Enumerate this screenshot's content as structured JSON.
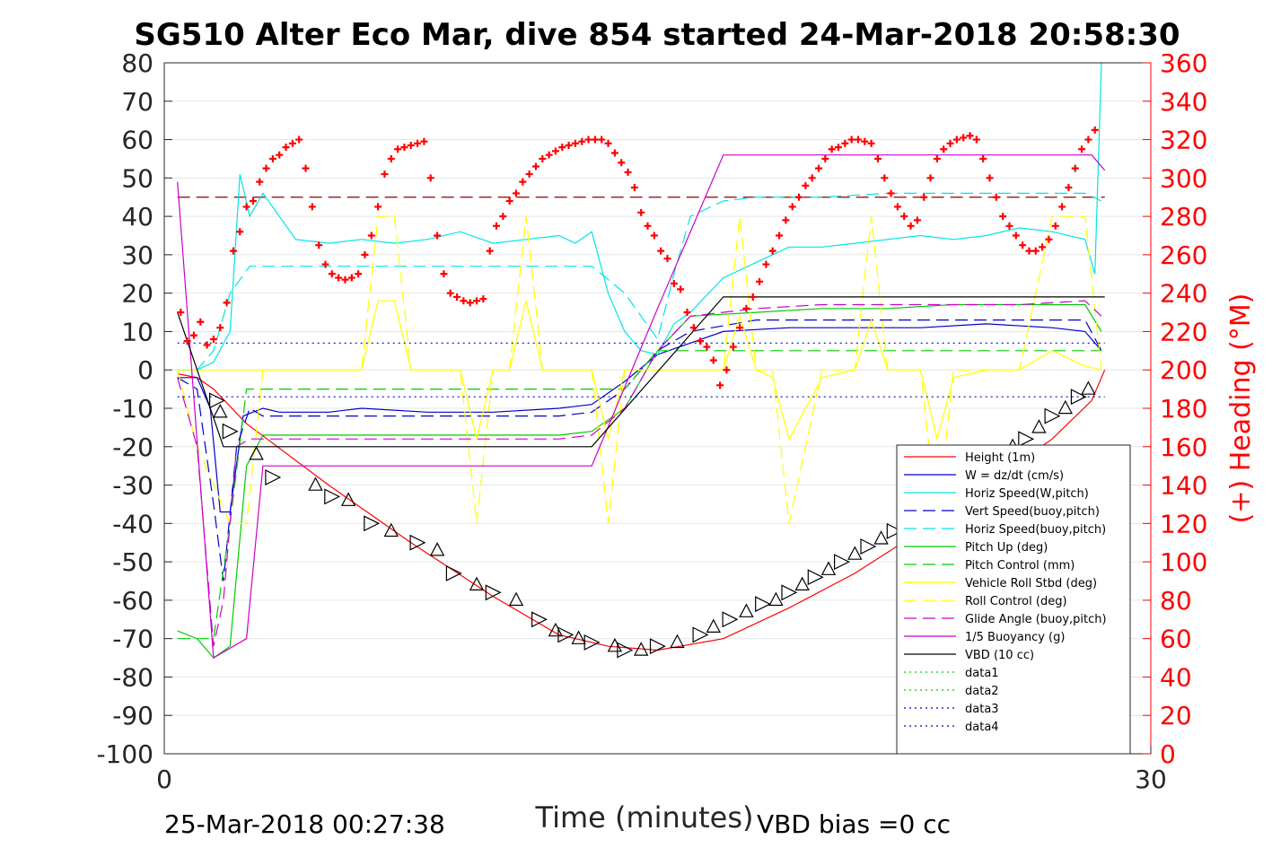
{
  "chart_data": {
    "type": "line",
    "title": "SG510 Alter Eco Mar, dive 854 started 24-Mar-2018 20:58:30",
    "xlabel": "Time (minutes)",
    "ylabel_right": "(+) Heading (°M)",
    "xlim": [
      0,
      30
    ],
    "ylim": [
      -100,
      80
    ],
    "ylim_right": [
      0,
      360
    ],
    "xticks": [
      "0",
      "30"
    ],
    "yticks": [
      "80",
      "70",
      "60",
      "50",
      "40",
      "30",
      "20",
      "10",
      "0",
      "-10",
      "-20",
      "-30",
      "-40",
      "-50",
      "-60",
      "-70",
      "-80",
      "-90",
      "-100"
    ],
    "yticks_right": [
      "360",
      "340",
      "320",
      "300",
      "280",
      "260",
      "240",
      "220",
      "200",
      "180",
      "160",
      "140",
      "120",
      "100",
      "80",
      "60",
      "40",
      "20",
      "0"
    ],
    "footer_left": "25-Mar-2018 00:27:38",
    "footer_right": "VBD bias =0 cc",
    "grid": true,
    "legend_position": "bottom-right",
    "series": [
      {
        "name": "Height (1m)",
        "color": "#ff0000",
        "style": "solid",
        "x": [
          0.4,
          1,
          1.5,
          2.5,
          5,
          7.5,
          10,
          12,
          13.5,
          15,
          17,
          19,
          21,
          23,
          25,
          27,
          28.2,
          28.6
        ],
        "y": [
          -1,
          -2,
          -5,
          -14,
          -30,
          -45,
          -59,
          -69,
          -72,
          -73,
          -70,
          -62,
          -53,
          -42,
          -30,
          -18,
          -8,
          0
        ]
      },
      {
        "name": "W = dz/dt (cm/s)",
        "color": "#0000cc",
        "style": "solid",
        "x": [
          0.4,
          1,
          1.4,
          1.7,
          2,
          2.4,
          3,
          3.5,
          5,
          6,
          8,
          10,
          12,
          13,
          14,
          15,
          16,
          17,
          19,
          21,
          23,
          25,
          27,
          28,
          28.5
        ],
        "y": [
          -2,
          -2,
          -10,
          -37,
          -37,
          -12,
          -10,
          -11,
          -11,
          -10,
          -11,
          -11,
          -10,
          -9,
          -3,
          4,
          7,
          10,
          11,
          11,
          11,
          12,
          11,
          10,
          5
        ]
      },
      {
        "name": "Horiz Speed(W,pitch)",
        "color": "#00e5e5",
        "style": "solid",
        "x": [
          0.4,
          1,
          1.5,
          2,
          2.3,
          2.6,
          3,
          4,
          5,
          6,
          7,
          8,
          9,
          10,
          11,
          12,
          12.5,
          13,
          13.5,
          14,
          14.5,
          15,
          15.5,
          16,
          17,
          18,
          19,
          20,
          21,
          22,
          23,
          24,
          25,
          26,
          27,
          28,
          28.3,
          28.5
        ],
        "y": [
          0,
          0,
          2,
          10,
          51,
          40,
          46,
          34,
          33,
          34,
          33,
          34,
          36,
          33,
          34,
          35,
          33,
          36,
          20,
          10,
          5,
          4,
          12,
          15,
          24,
          28,
          32,
          32,
          33,
          34,
          35,
          34,
          35,
          37,
          36,
          34,
          25,
          80
        ]
      },
      {
        "name": "Vert Speed(buoy,pitch)",
        "color": "#0000cc",
        "style": "dashed",
        "x": [
          0.4,
          1,
          1.5,
          1.8,
          2.2,
          2.6,
          3,
          5,
          8,
          10,
          12,
          13,
          14,
          15,
          16,
          18,
          20,
          24,
          26,
          28,
          28.5
        ],
        "y": [
          -2,
          -5,
          -35,
          -55,
          -20,
          -10,
          -12,
          -12,
          -12,
          -12,
          -12,
          -11,
          -5,
          5,
          10,
          13,
          13,
          13,
          13,
          13,
          5
        ]
      },
      {
        "name": "Horiz Speed(buoy,pitch)",
        "color": "#00e5e5",
        "style": "dashed",
        "x": [
          0.4,
          1,
          1.5,
          2,
          2.6,
          3,
          5,
          8,
          10,
          12,
          13,
          14,
          15,
          15.5,
          16,
          17,
          18,
          20,
          22,
          24,
          26,
          28,
          28.5
        ],
        "y": [
          0,
          0,
          5,
          20,
          27,
          27,
          27,
          27,
          27,
          27,
          27,
          20,
          8,
          25,
          40,
          44,
          45,
          45,
          46,
          46,
          46,
          46,
          44
        ]
      },
      {
        "name": "Pitch Up (deg)",
        "color": "#00cc00",
        "style": "solid",
        "x": [
          0.4,
          1,
          1.5,
          2,
          2.5,
          3,
          4,
          6,
          8,
          10,
          12,
          13,
          14,
          15,
          16,
          18,
          20,
          22,
          24,
          26,
          28,
          28.5
        ],
        "y": [
          -68,
          -70,
          -75,
          -72,
          -25,
          -17,
          -17,
          -17,
          -17,
          -17,
          -17,
          -16,
          -10,
          5,
          14,
          15,
          16,
          16,
          17,
          17,
          17,
          10
        ]
      },
      {
        "name": "Pitch Control (mm)",
        "color": "#00cc00",
        "style": "dashed",
        "x": [
          0.4,
          1.5,
          2,
          2.5,
          13,
          14,
          15,
          28.5
        ],
        "y": [
          -70,
          -70,
          -40,
          -5,
          -5,
          -5,
          5,
          5
        ]
      },
      {
        "name": "Vehicle Roll Stbd (deg)",
        "color": "#ffff00",
        "style": "solid",
        "x": [
          0.4,
          2,
          3,
          4,
          5,
          6,
          6.5,
          7,
          7.5,
          8,
          9,
          9.5,
          10,
          10.5,
          11,
          11.5,
          12,
          13,
          13.5,
          14,
          15,
          16,
          17,
          17.5,
          18,
          18.5,
          19,
          20,
          21,
          21.5,
          22,
          23,
          23.5,
          24,
          25,
          26,
          27,
          28,
          28.5
        ],
        "y": [
          0,
          0,
          0,
          0,
          0,
          0,
          18,
          18,
          0,
          0,
          0,
          -18,
          0,
          0,
          18,
          0,
          0,
          0,
          -18,
          0,
          0,
          0,
          0,
          14,
          0,
          -2,
          -18,
          -2,
          0,
          13,
          0,
          0,
          -18,
          -2,
          0,
          0,
          5,
          1,
          0
        ]
      },
      {
        "name": "Roll Control (deg)",
        "color": "#ffff00",
        "style": "dashed",
        "x": [
          0.4,
          1,
          2,
          2.5,
          3,
          5,
          6,
          6.5,
          7,
          7.5,
          8,
          9,
          9.5,
          10,
          10.5,
          11,
          11.5,
          12,
          13,
          13.5,
          14,
          16,
          17,
          17.5,
          18,
          18.5,
          19,
          20,
          21,
          21.5,
          22,
          23,
          23.5,
          24,
          25,
          26,
          27,
          28,
          28.5
        ],
        "y": [
          0,
          -20,
          -40,
          -40,
          0,
          0,
          0,
          40,
          40,
          0,
          0,
          0,
          -40,
          0,
          0,
          40,
          0,
          0,
          0,
          -40,
          0,
          0,
          0,
          40,
          0,
          0,
          -40,
          0,
          0,
          40,
          0,
          0,
          -40,
          0,
          0,
          0,
          40,
          40,
          0
        ]
      },
      {
        "name": "Glide Angle (buoy,pitch)",
        "color": "#cc00cc",
        "style": "dashed",
        "x": [
          0.4,
          1,
          1.5,
          1.8,
          2.2,
          2.6,
          3,
          5,
          8,
          10,
          12,
          13,
          14,
          15,
          16,
          18,
          20,
          22,
          24,
          26,
          28,
          28.5
        ],
        "y": [
          -2,
          -20,
          -72,
          -60,
          -20,
          -18,
          -18,
          -18,
          -18,
          -18,
          -18,
          -17,
          -10,
          5,
          14,
          16,
          17,
          17,
          17,
          17,
          18,
          14
        ]
      },
      {
        "name": "1/5 Buoyancy (g)",
        "color": "#cc00cc",
        "style": "solid",
        "x": [
          0.4,
          1.5,
          2.5,
          3,
          4,
          13,
          15,
          17,
          28.2,
          28.6
        ],
        "y": [
          49,
          -75,
          -70,
          -25,
          -25,
          -25,
          16,
          56,
          56,
          52
        ]
      },
      {
        "name": "VBD (10 cc)",
        "color": "#000000",
        "style": "solid",
        "x": [
          0.4,
          1.8,
          13,
          17,
          28.6
        ],
        "y": [
          15,
          -20,
          -20,
          19,
          19
        ]
      },
      {
        "name": "data1",
        "color": "#00cc00",
        "style": "dotted",
        "x": [],
        "y": []
      },
      {
        "name": "data2",
        "color": "#00cc00",
        "style": "dotted",
        "x": [],
        "y": []
      },
      {
        "name": "data3",
        "color": "#0000cc",
        "style": "dotted",
        "x": [
          0.4,
          28.6
        ],
        "y": [
          7,
          7
        ]
      },
      {
        "name": "data4",
        "color": "#0000cc",
        "style": "dotted",
        "x": [
          0.4,
          28.6
        ],
        "y": [
          -7,
          -7
        ]
      }
    ],
    "reference_lines": [
      {
        "color": "#8b0000",
        "style": "dashed",
        "y": 45,
        "x": [
          0.4,
          28.6
        ]
      }
    ],
    "heading_points": {
      "color": "#ff0000",
      "axis": "right",
      "x": [
        0.5,
        0.7,
        0.9,
        1.1,
        1.3,
        1.5,
        1.7,
        1.9,
        2.1,
        2.3,
        2.5,
        2.7,
        2.9,
        3.1,
        3.3,
        3.5,
        3.7,
        3.9,
        4.1,
        4.3,
        4.5,
        4.7,
        4.9,
        5.1,
        5.3,
        5.5,
        5.7,
        5.9,
        6.1,
        6.3,
        6.5,
        6.7,
        6.9,
        7.1,
        7.3,
        7.5,
        7.7,
        7.9,
        8.1,
        8.3,
        8.5,
        8.7,
        8.9,
        9.1,
        9.3,
        9.5,
        9.7,
        9.9,
        10.1,
        10.3,
        10.5,
        10.7,
        10.9,
        11.1,
        11.3,
        11.5,
        11.7,
        11.9,
        12.1,
        12.3,
        12.5,
        12.7,
        12.9,
        13.1,
        13.3,
        13.5,
        13.7,
        13.9,
        14.1,
        14.3,
        14.5,
        14.7,
        14.9,
        15.1,
        15.3,
        15.5,
        15.7,
        15.9,
        16.1,
        16.3,
        16.5,
        16.7,
        16.9,
        17.1,
        17.3,
        17.5,
        17.7,
        17.9,
        18.1,
        18.3,
        18.5,
        18.7,
        18.9,
        19.1,
        19.3,
        19.5,
        19.7,
        19.9,
        20.1,
        20.3,
        20.5,
        20.7,
        20.9,
        21.1,
        21.3,
        21.5,
        21.7,
        21.9,
        22.1,
        22.3,
        22.5,
        22.7,
        22.9,
        23.1,
        23.3,
        23.5,
        23.7,
        23.9,
        24.1,
        24.3,
        24.5,
        24.7,
        24.9,
        25.1,
        25.3,
        25.5,
        25.7,
        25.9,
        26.1,
        26.3,
        26.5,
        26.7,
        26.9,
        27.1,
        27.3,
        27.5,
        27.7,
        27.9,
        28.1,
        28.3
      ],
      "y": [
        230,
        215,
        218,
        225,
        213,
        216,
        222,
        235,
        262,
        272,
        285,
        288,
        298,
        305,
        310,
        312,
        316,
        318,
        320,
        305,
        285,
        265,
        255,
        250,
        248,
        247,
        248,
        250,
        260,
        270,
        285,
        302,
        310,
        315,
        316,
        317,
        318,
        319,
        300,
        270,
        250,
        240,
        238,
        236,
        235,
        236,
        237,
        262,
        275,
        280,
        288,
        292,
        298,
        302,
        306,
        310,
        312,
        314,
        316,
        317,
        318,
        319,
        320,
        320,
        320,
        318,
        313,
        308,
        303,
        295,
        282,
        275,
        270,
        262,
        258,
        245,
        242,
        230,
        222,
        215,
        212,
        205,
        192,
        200,
        212,
        222,
        232,
        238,
        246,
        255,
        262,
        270,
        278,
        285,
        290,
        296,
        300,
        305,
        310,
        315,
        316,
        318,
        320,
        320,
        319,
        318,
        310,
        300,
        292,
        285,
        280,
        275,
        278,
        290,
        300,
        310,
        315,
        318,
        320,
        321,
        322,
        320,
        310,
        300,
        290,
        280,
        275,
        270,
        265,
        262,
        262,
        264,
        268,
        275,
        285,
        295,
        305,
        315,
        320,
        325
      ]
    },
    "triangle_markers": {
      "color": "#000000",
      "x": [
        1.6,
        1.7,
        2.0,
        2.8,
        3.3,
        4.6,
        5.1,
        5.6,
        6.3,
        6.9,
        7.7,
        8.3,
        8.8,
        9.5,
        10.0,
        10.7,
        11.4,
        11.9,
        12.2,
        12.6,
        13.0,
        13.7,
        14.0,
        14.5,
        15.0,
        15.6,
        16.3,
        16.7,
        17.2,
        17.7,
        18.2,
        18.6,
        19.0,
        19.4,
        19.8,
        20.2,
        20.6,
        21.0,
        21.4,
        21.8,
        22.2,
        22.6,
        23.0,
        23.4,
        23.8,
        24.2,
        24.6,
        25.0,
        25.4,
        25.8,
        26.2,
        26.6,
        27.0,
        27.4,
        27.8,
        28.1
      ],
      "y": [
        -8,
        -11,
        -16,
        -22,
        -28,
        -30,
        -33,
        -34,
        -40,
        -42,
        -45,
        -47,
        -53,
        -56,
        -58,
        -60,
        -65,
        -68,
        -69,
        -70,
        -71,
        -72,
        -73,
        -73,
        -72,
        -71,
        -69,
        -67,
        -65,
        -63,
        -61,
        -60,
        -58,
        -56,
        -54,
        -52,
        -50,
        -48,
        -46,
        -44,
        -42,
        -39,
        -37,
        -34,
        -31,
        -29,
        -26,
        -24,
        -22,
        -20,
        -18,
        -15,
        -12,
        -10,
        -7,
        -5
      ]
    }
  }
}
